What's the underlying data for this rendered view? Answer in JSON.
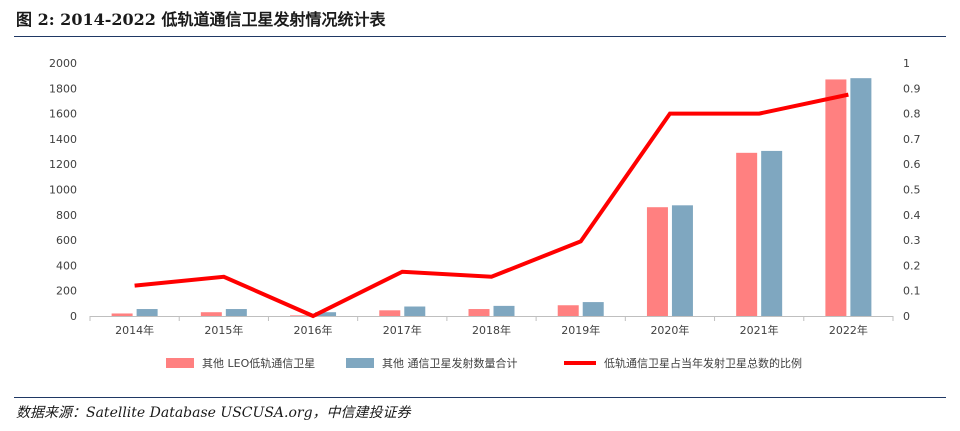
{
  "header": {
    "title": "图 2: 2014-2022 低轨道通信卫星发射情况统计表"
  },
  "footer": {
    "source": "数据来源：Satellite Database USCUSA.org，中信建投证券"
  },
  "chart_data": {
    "type": "bar",
    "categories": [
      "2014年",
      "2015年",
      "2016年",
      "2017年",
      "2018年",
      "2019年",
      "2020年",
      "2021年",
      "2022年"
    ],
    "series": [
      {
        "name": "其他 LEO低轨通信卫星",
        "type": "bar",
        "axis": "left",
        "color": "#ff8080",
        "values": [
          20,
          30,
          5,
          45,
          55,
          85,
          860,
          1290,
          1870
        ]
      },
      {
        "name": "其他 通信卫星发射数量合计",
        "type": "bar",
        "axis": "left",
        "color": "#7fa7c0",
        "values": [
          55,
          55,
          30,
          75,
          80,
          110,
          875,
          1305,
          1880
        ]
      },
      {
        "name": "低轨通信卫星占当年发射卫星总数的比例",
        "type": "line",
        "axis": "right",
        "color": "#ff0000",
        "values": [
          0.12,
          0.155,
          0.0,
          0.175,
          0.155,
          0.295,
          0.8,
          0.8,
          0.875
        ]
      }
    ],
    "y_left": {
      "min": 0,
      "max": 2000,
      "step": 200,
      "ticks": [
        "0",
        "200",
        "400",
        "600",
        "800",
        "1000",
        "1200",
        "1400",
        "1600",
        "1800",
        "2000"
      ]
    },
    "y_right": {
      "min": 0,
      "max": 1,
      "step": 0.1,
      "ticks": [
        "0",
        "0.1",
        "0.2",
        "0.3",
        "0.4",
        "0.5",
        "0.6",
        "0.7",
        "0.8",
        "0.9",
        "1"
      ]
    },
    "grid": false,
    "legend_position": "bottom"
  }
}
